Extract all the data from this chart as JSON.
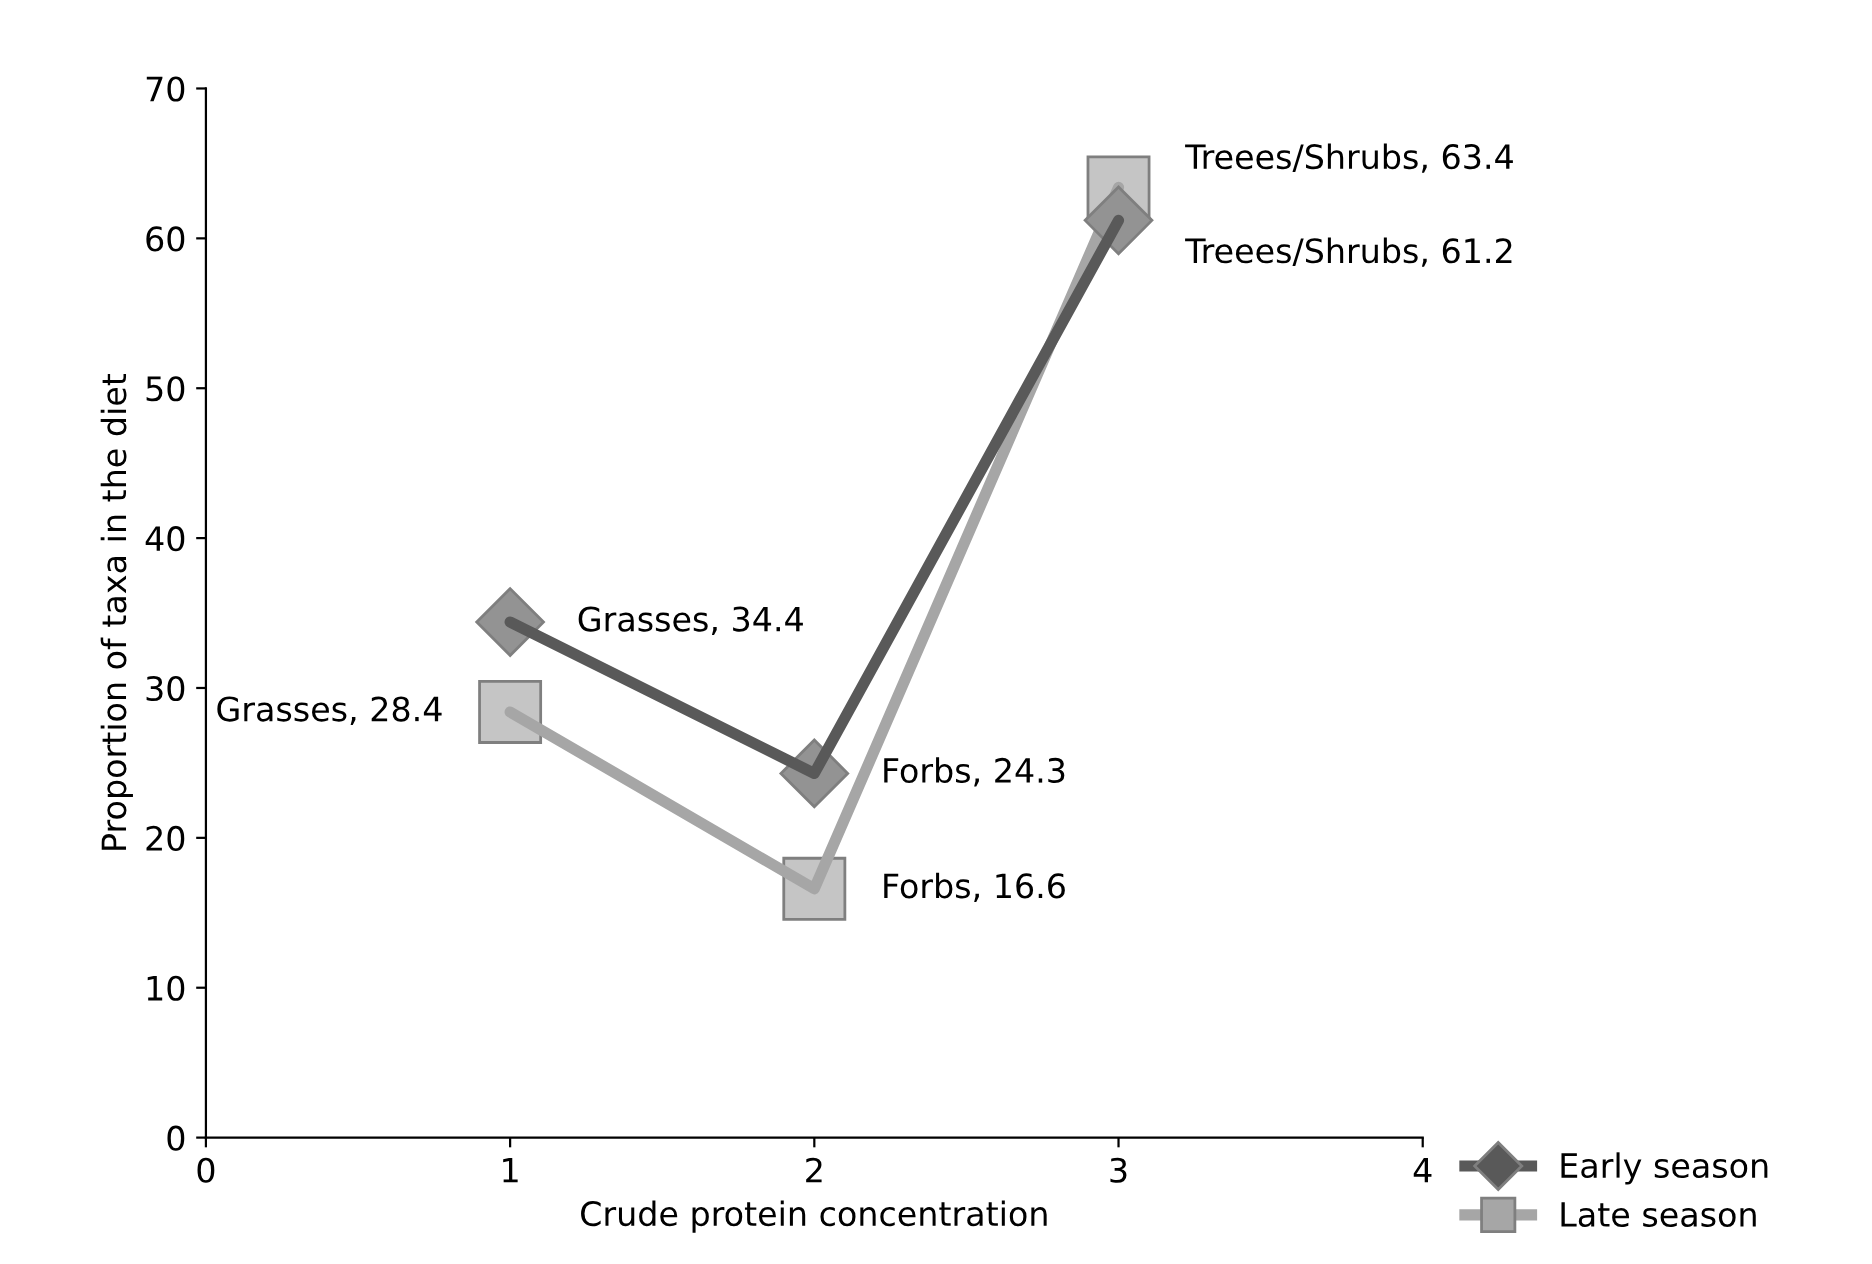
{
  "chart_data": {
    "type": "line",
    "xlabel": "Crude protein concentration",
    "ylabel": "Proportion of taxa in the diet",
    "x": [
      1,
      2,
      3
    ],
    "series": [
      {
        "name": "Early season",
        "color": "#595959",
        "marker": "diamond",
        "values": [
          34.4,
          24.3,
          61.2
        ]
      },
      {
        "name": "Late season",
        "color": "#a6a6a6",
        "marker": "square",
        "values": [
          28.4,
          16.6,
          63.4
        ]
      }
    ],
    "annotations": [
      {
        "text": "Grasses, 34.4",
        "x": 1,
        "y": 34.4
      },
      {
        "text": "Forbs, 24.3",
        "x": 2,
        "y": 24.3
      },
      {
        "text": "Treees/Shrubs, 61.2",
        "x": 3,
        "y": 61.2
      },
      {
        "text": "Grasses, 28.4",
        "x": 1,
        "y": 28.4
      },
      {
        "text": "Forbs, 16.6",
        "x": 2,
        "y": 16.6
      },
      {
        "text": "Treees/Shrubs, 63.4",
        "x": 3,
        "y": 63.4
      }
    ],
    "xlim": [
      0,
      4
    ],
    "xticks": [
      0,
      1,
      2,
      3,
      4
    ],
    "ylim": [
      0,
      70
    ],
    "yticks": [
      0,
      10,
      20,
      30,
      40,
      50,
      60,
      70
    ],
    "grid": false,
    "legend": "bottom right"
  }
}
